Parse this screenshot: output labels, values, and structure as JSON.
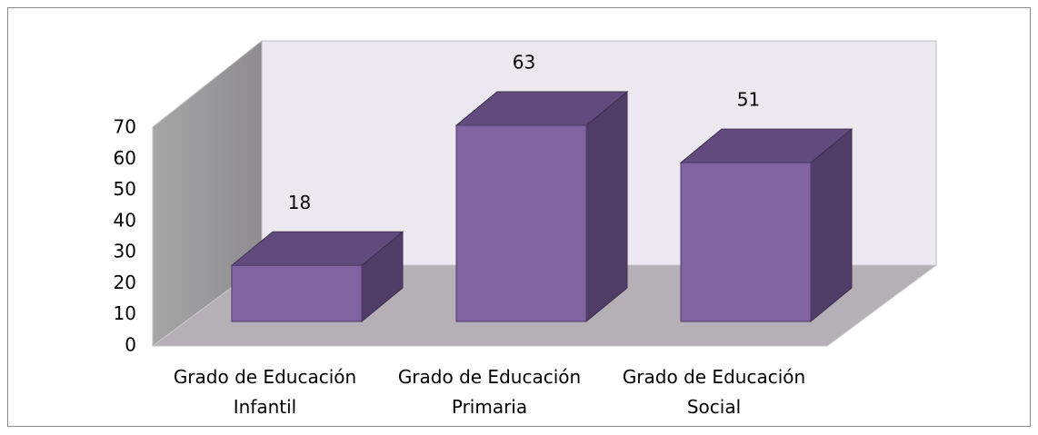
{
  "chart_data": {
    "type": "bar3d",
    "categories": [
      "Grado de Educación Infantil",
      "Grado de Educación Primaria",
      "Grado de Educación Social"
    ],
    "values": [
      18,
      63,
      51
    ],
    "color": "#8064a2",
    "ylim": [
      0,
      70
    ],
    "yticks": [
      0,
      10,
      20,
      30,
      40,
      50,
      60,
      70
    ],
    "grid": false
  }
}
